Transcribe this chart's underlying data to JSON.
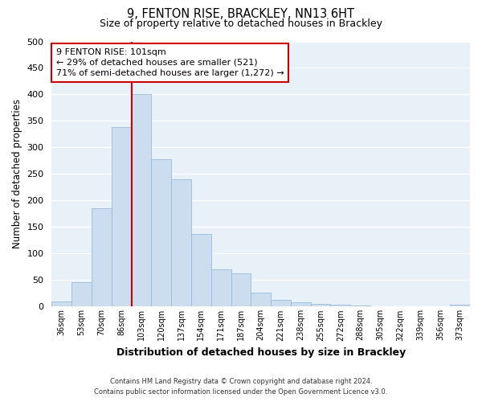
{
  "title": "9, FENTON RISE, BRACKLEY, NN13 6HT",
  "subtitle": "Size of property relative to detached houses in Brackley",
  "xlabel": "Distribution of detached houses by size in Brackley",
  "ylabel": "Number of detached properties",
  "bar_color": "#ccddf0",
  "bar_edge_color": "#99bbdd",
  "bin_labels": [
    "36sqm",
    "53sqm",
    "70sqm",
    "86sqm",
    "103sqm",
    "120sqm",
    "137sqm",
    "154sqm",
    "171sqm",
    "187sqm",
    "204sqm",
    "221sqm",
    "238sqm",
    "255sqm",
    "272sqm",
    "288sqm",
    "305sqm",
    "322sqm",
    "339sqm",
    "356sqm",
    "373sqm"
  ],
  "bar_values": [
    9,
    46,
    185,
    338,
    400,
    278,
    240,
    137,
    70,
    62,
    26,
    12,
    8,
    5,
    3,
    2,
    1,
    0,
    0,
    0,
    4
  ],
  "vline_color": "#cc0000",
  "ylim": [
    0,
    500
  ],
  "yticks": [
    0,
    50,
    100,
    150,
    200,
    250,
    300,
    350,
    400,
    450,
    500
  ],
  "annotation_text": "9 FENTON RISE: 101sqm\n← 29% of detached houses are smaller (521)\n71% of semi-detached houses are larger (1,272) →",
  "annotation_box_color": "#ffffff",
  "annotation_box_edge_color": "#cc0000",
  "footer_line1": "Contains HM Land Registry data © Crown copyright and database right 2024.",
  "footer_line2": "Contains public sector information licensed under the Open Government Licence v3.0.",
  "fig_background_color": "#ffffff",
  "axes_background_color": "#e8f0f8",
  "grid_color": "#ffffff"
}
